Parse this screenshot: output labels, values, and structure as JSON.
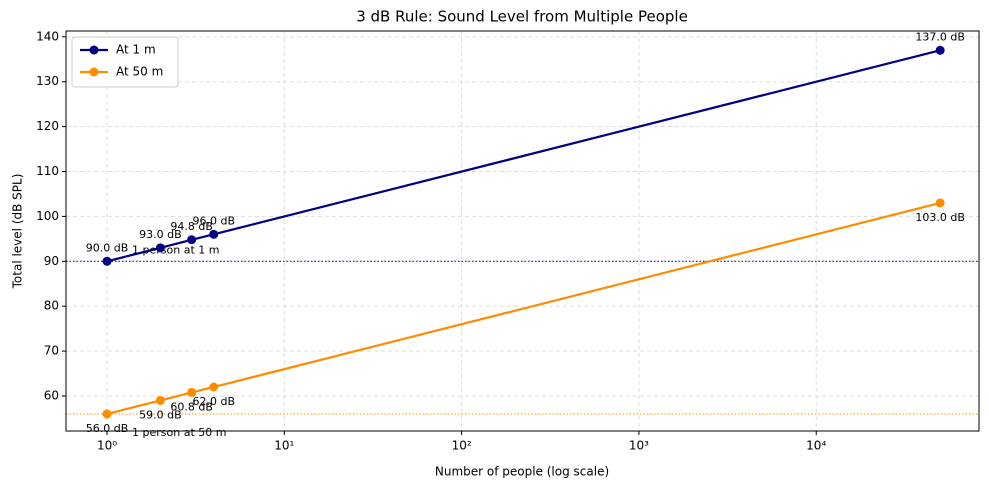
{
  "chart_data": {
    "type": "line",
    "title": "3 dB Rule: Sound Level from Multiple People",
    "x_label": "Number of people (log scale)",
    "y_label": "Total level (dB SPL)",
    "x": [
      1,
      2,
      3,
      4,
      50000
    ],
    "series": [
      {
        "name": "At 1 m",
        "color": "#000080",
        "values": [
          90,
          93,
          94.8,
          96,
          137
        ],
        "value_labels": [
          "90.0 dB",
          "93.0 dB",
          "94.8 dB",
          "96.0 dB",
          "137.0 dB"
        ]
      },
      {
        "name": "At 50 m",
        "color": "#ff8c00",
        "values": [
          56,
          59,
          60.8,
          62,
          103
        ],
        "value_labels": [
          "56.0 dB",
          "59.0 dB",
          "60.8 dB",
          "62.0 dB",
          "103.0 dB"
        ]
      }
    ],
    "hlines": [
      {
        "value": 90,
        "label": "1 person at 1 m",
        "color": "#000080"
      },
      {
        "value": 56,
        "label": "1 person at 50 m",
        "color": "#ff8c00"
      }
    ],
    "xscale": "log",
    "xlim": [
      0.587,
      82800
    ],
    "ylim": [
      52.2,
      141.3
    ],
    "xticks": [
      {
        "value": 1,
        "label": "10⁰"
      },
      {
        "value": 10,
        "label": "10¹"
      },
      {
        "value": 100,
        "label": "10²"
      },
      {
        "value": 1000,
        "label": "10³"
      },
      {
        "value": 10000,
        "label": "10⁴"
      }
    ],
    "yticks": [
      60,
      70,
      80,
      90,
      100,
      110,
      120,
      130,
      140
    ],
    "grid": true,
    "legend_position": "upper-left"
  }
}
